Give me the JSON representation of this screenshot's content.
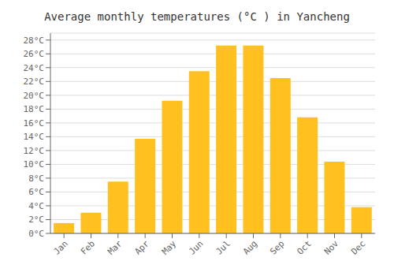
{
  "chart_data": {
    "type": "bar",
    "title": "Average monthly temperatures (°C ) in Yancheng",
    "categories": [
      "Jan",
      "Feb",
      "Mar",
      "Apr",
      "May",
      "Jun",
      "Jul",
      "Aug",
      "Sep",
      "Oct",
      "Nov",
      "Dec"
    ],
    "values": [
      1.5,
      3.0,
      7.5,
      13.7,
      19.2,
      23.5,
      27.2,
      27.2,
      22.5,
      16.8,
      10.4,
      3.8
    ],
    "color": "#FFC020",
    "ylim": [
      0,
      29
    ],
    "yticks": [
      {
        "value": 0,
        "label": "0°C"
      },
      {
        "value": 2,
        "label": "2°C"
      },
      {
        "value": 4,
        "label": "4°C"
      },
      {
        "value": 6,
        "label": "6°C"
      },
      {
        "value": 8,
        "label": "8°C"
      },
      {
        "value": 10,
        "label": "10°C"
      },
      {
        "value": 12,
        "label": "12°C"
      },
      {
        "value": 14,
        "label": "14°C"
      },
      {
        "value": 16,
        "label": "16°C"
      },
      {
        "value": 18,
        "label": "18°C"
      },
      {
        "value": 20,
        "label": "20°C"
      },
      {
        "value": 22,
        "label": "22°C"
      },
      {
        "value": 24,
        "label": "24°C"
      },
      {
        "value": 26,
        "label": "26°C"
      },
      {
        "value": 28,
        "label": "28°C"
      }
    ],
    "grid": true
  }
}
